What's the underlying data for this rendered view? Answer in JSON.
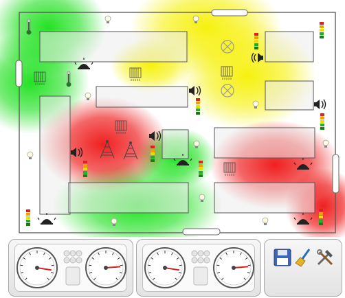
{
  "colors": {
    "heat_green": "#18e018",
    "heat_yellow": "#f6f000",
    "heat_red": "#ee1414",
    "room_fill": "#ececec",
    "wall_stroke": "#555555",
    "needle": "#d81e1e"
  },
  "heatmap": {
    "legend": "green-yellow-red",
    "zones": [
      {
        "name": "zone-top-left",
        "level": "low"
      },
      {
        "name": "zone-left",
        "level": "low"
      },
      {
        "name": "zone-top-center",
        "level": "medium"
      },
      {
        "name": "zone-top-right",
        "level": "medium"
      },
      {
        "name": "zone-center-left",
        "level": "high"
      },
      {
        "name": "zone-bottom-center",
        "level": "low"
      },
      {
        "name": "zone-right",
        "level": "high"
      }
    ]
  },
  "devices": {
    "icons": [
      "thermometer-icon",
      "light-bulb-icon",
      "speaker-icon",
      "alarm-siren-icon",
      "radiator-icon",
      "level-meter-icon",
      "ceiling-light-icon",
      "cell-tower-icon"
    ]
  },
  "dashboard": {
    "gauges": [
      {
        "name": "speed-gauge",
        "value": 20,
        "max": 100
      },
      {
        "name": "load-gauge",
        "value": 15,
        "max": 100
      }
    ],
    "tools": [
      {
        "name": "save",
        "icon": "floppy-disk-icon"
      },
      {
        "name": "clear",
        "icon": "broom-icon"
      },
      {
        "name": "settings",
        "icon": "tools-icon"
      }
    ]
  }
}
